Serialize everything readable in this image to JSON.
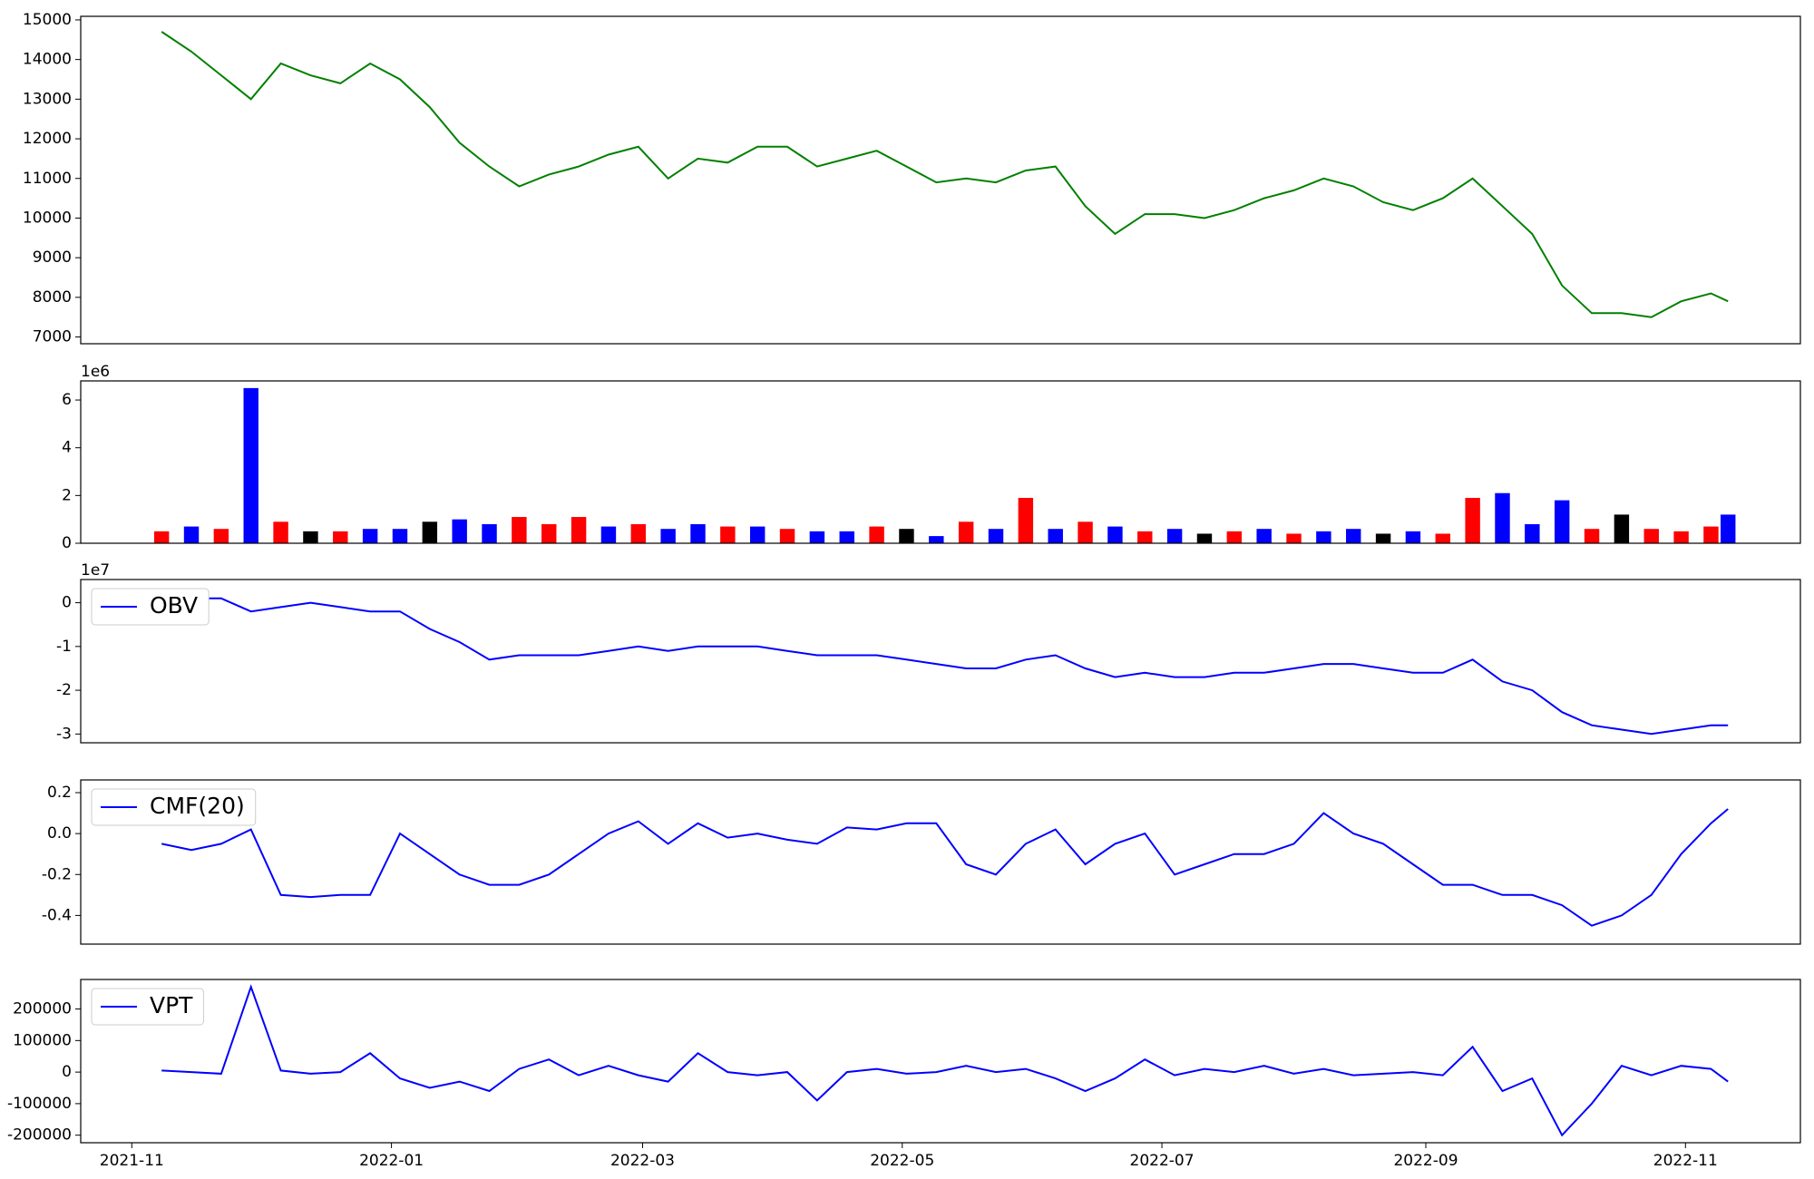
{
  "chart_data": [
    {
      "type": "line",
      "x": [
        "2021-11-08",
        "2021-11-15",
        "2021-11-22",
        "2021-11-29",
        "2021-12-06",
        "2021-12-13",
        "2021-12-20",
        "2021-12-27",
        "2022-01-03",
        "2022-01-10",
        "2022-01-17",
        "2022-01-24",
        "2022-01-31",
        "2022-02-07",
        "2022-02-14",
        "2022-02-21",
        "2022-02-28",
        "2022-03-07",
        "2022-03-14",
        "2022-03-21",
        "2022-03-28",
        "2022-04-04",
        "2022-04-11",
        "2022-04-18",
        "2022-04-25",
        "2022-05-02",
        "2022-05-09",
        "2022-05-16",
        "2022-05-23",
        "2022-05-30",
        "2022-06-06",
        "2022-06-13",
        "2022-06-20",
        "2022-06-27",
        "2022-07-04",
        "2022-07-11",
        "2022-07-18",
        "2022-07-25",
        "2022-08-01",
        "2022-08-08",
        "2022-08-15",
        "2022-08-22",
        "2022-08-29",
        "2022-09-05",
        "2022-09-12",
        "2022-09-19",
        "2022-09-26",
        "2022-10-03",
        "2022-10-10",
        "2022-10-17",
        "2022-10-24",
        "2022-10-31",
        "2022-11-07",
        "2022-11-11"
      ],
      "series": [
        {
          "color": "green",
          "values": [
            14700,
            14200,
            13600,
            13000,
            13900,
            13600,
            13400,
            13900,
            13500,
            12800,
            11900,
            11300,
            10800,
            11100,
            11300,
            11600,
            11800,
            11000,
            11500,
            11400,
            11800,
            11800,
            11300,
            11500,
            11700,
            11300,
            10900,
            11000,
            10900,
            11200,
            11300,
            10300,
            9600,
            10100,
            10100,
            10000,
            10200,
            10500,
            10700,
            11000,
            10800,
            10400,
            10200,
            10500,
            11000,
            10300,
            9600,
            8300,
            7600,
            7600,
            7500,
            7900,
            8100,
            7900
          ]
        }
      ],
      "xlim": [
        "2021-10-20",
        "2022-11-28"
      ],
      "ylim": [
        6830,
        15090
      ],
      "yticks": [
        7000,
        8000,
        9000,
        10000,
        11000,
        12000,
        13000,
        14000,
        15000
      ]
    },
    {
      "type": "bar",
      "x": [
        "2021-11-08",
        "2021-11-15",
        "2021-11-22",
        "2021-11-29",
        "2021-12-06",
        "2021-12-13",
        "2021-12-20",
        "2021-12-27",
        "2022-01-03",
        "2022-01-10",
        "2022-01-17",
        "2022-01-24",
        "2022-01-31",
        "2022-02-07",
        "2022-02-14",
        "2022-02-21",
        "2022-02-28",
        "2022-03-07",
        "2022-03-14",
        "2022-03-21",
        "2022-03-28",
        "2022-04-04",
        "2022-04-11",
        "2022-04-18",
        "2022-04-25",
        "2022-05-02",
        "2022-05-09",
        "2022-05-16",
        "2022-05-23",
        "2022-05-30",
        "2022-06-06",
        "2022-06-13",
        "2022-06-20",
        "2022-06-27",
        "2022-07-04",
        "2022-07-11",
        "2022-07-18",
        "2022-07-25",
        "2022-08-01",
        "2022-08-08",
        "2022-08-15",
        "2022-08-22",
        "2022-08-29",
        "2022-09-05",
        "2022-09-12",
        "2022-09-19",
        "2022-09-26",
        "2022-10-03",
        "2022-10-10",
        "2022-10-17",
        "2022-10-24",
        "2022-10-31",
        "2022-11-07",
        "2022-11-11"
      ],
      "values": [
        0.5,
        0.7,
        0.6,
        6.5,
        0.9,
        0.5,
        0.5,
        0.6,
        0.6,
        0.9,
        1.0,
        0.8,
        1.1,
        0.8,
        1.1,
        0.7,
        0.8,
        0.6,
        0.8,
        0.7,
        0.7,
        0.6,
        0.5,
        0.5,
        0.7,
        0.6,
        0.3,
        0.9,
        0.6,
        1.9,
        0.6,
        0.9,
        0.7,
        0.5,
        0.6,
        0.4,
        0.5,
        0.6,
        0.4,
        0.5,
        0.6,
        0.4,
        0.5,
        0.4,
        1.9,
        2.1,
        0.8,
        1.8,
        0.6,
        1.2,
        0.6,
        0.5,
        0.7,
        1.2
      ],
      "colors": [
        "red",
        "blue",
        "red",
        "blue",
        "red",
        "black",
        "red",
        "blue",
        "blue",
        "black",
        "blue",
        "blue",
        "red",
        "red",
        "red",
        "blue",
        "red",
        "blue",
        "blue",
        "red",
        "blue",
        "red",
        "blue",
        "blue",
        "red",
        "black",
        "blue",
        "red",
        "blue",
        "red",
        "blue",
        "red",
        "blue",
        "red",
        "blue",
        "black",
        "red",
        "blue",
        "red",
        "blue",
        "blue",
        "black",
        "blue",
        "red",
        "red",
        "blue",
        "blue",
        "blue",
        "red",
        "black",
        "red",
        "red",
        "red",
        "blue"
      ],
      "offset_label": "1e6",
      "xlim": [
        "2021-10-20",
        "2022-11-28"
      ],
      "ylim": [
        0,
        6.8
      ],
      "yticks": [
        0,
        2,
        4,
        6
      ]
    },
    {
      "type": "line",
      "x": [
        "2021-11-08",
        "2021-11-15",
        "2021-11-22",
        "2021-11-29",
        "2021-12-06",
        "2021-12-13",
        "2021-12-20",
        "2021-12-27",
        "2022-01-03",
        "2022-01-10",
        "2022-01-17",
        "2022-01-24",
        "2022-01-31",
        "2022-02-07",
        "2022-02-14",
        "2022-02-21",
        "2022-02-28",
        "2022-03-07",
        "2022-03-14",
        "2022-03-21",
        "2022-03-28",
        "2022-04-04",
        "2022-04-11",
        "2022-04-18",
        "2022-04-25",
        "2022-05-02",
        "2022-05-09",
        "2022-05-16",
        "2022-05-23",
        "2022-05-30",
        "2022-06-06",
        "2022-06-13",
        "2022-06-20",
        "2022-06-27",
        "2022-07-04",
        "2022-07-11",
        "2022-07-18",
        "2022-07-25",
        "2022-08-01",
        "2022-08-08",
        "2022-08-15",
        "2022-08-22",
        "2022-08-29",
        "2022-09-05",
        "2022-09-12",
        "2022-09-19",
        "2022-09-26",
        "2022-10-03",
        "2022-10-10",
        "2022-10-17",
        "2022-10-24",
        "2022-10-31",
        "2022-11-07",
        "2022-11-11"
      ],
      "series": [
        {
          "name": "OBV",
          "color": "blue",
          "values": [
            0.3,
            0.1,
            0.1,
            -0.2,
            -0.1,
            0.0,
            -0.1,
            -0.2,
            -0.2,
            -0.6,
            -0.9,
            -1.3,
            -1.2,
            -1.2,
            -1.2,
            -1.1,
            -1.0,
            -1.1,
            -1.0,
            -1.0,
            -1.0,
            -1.1,
            -1.2,
            -1.2,
            -1.2,
            -1.3,
            -1.4,
            -1.5,
            -1.5,
            -1.3,
            -1.2,
            -1.5,
            -1.7,
            -1.6,
            -1.7,
            -1.7,
            -1.6,
            -1.6,
            -1.5,
            -1.4,
            -1.4,
            -1.5,
            -1.6,
            -1.6,
            -1.3,
            -1.8,
            -2.0,
            -2.5,
            -2.8,
            -2.9,
            -3.0,
            -2.9,
            -2.8,
            -2.8
          ]
        }
      ],
      "legend": "upper left",
      "offset_label": "1e7",
      "xlim": [
        "2021-10-20",
        "2022-11-28"
      ],
      "ylim": [
        -3.2,
        0.53
      ],
      "yticks": [
        -3,
        -2,
        -1,
        0
      ]
    },
    {
      "type": "line",
      "x": [
        "2021-11-08",
        "2021-11-15",
        "2021-11-22",
        "2021-11-29",
        "2021-12-06",
        "2021-12-13",
        "2021-12-20",
        "2021-12-27",
        "2022-01-03",
        "2022-01-10",
        "2022-01-17",
        "2022-01-24",
        "2022-01-31",
        "2022-02-07",
        "2022-02-14",
        "2022-02-21",
        "2022-02-28",
        "2022-03-07",
        "2022-03-14",
        "2022-03-21",
        "2022-03-28",
        "2022-04-04",
        "2022-04-11",
        "2022-04-18",
        "2022-04-25",
        "2022-05-02",
        "2022-05-09",
        "2022-05-16",
        "2022-05-23",
        "2022-05-30",
        "2022-06-06",
        "2022-06-13",
        "2022-06-20",
        "2022-06-27",
        "2022-07-04",
        "2022-07-11",
        "2022-07-18",
        "2022-07-25",
        "2022-08-01",
        "2022-08-08",
        "2022-08-15",
        "2022-08-22",
        "2022-08-29",
        "2022-09-05",
        "2022-09-12",
        "2022-09-19",
        "2022-09-26",
        "2022-10-03",
        "2022-10-10",
        "2022-10-17",
        "2022-10-24",
        "2022-10-31",
        "2022-11-07",
        "2022-11-11"
      ],
      "series": [
        {
          "name": "CMF(20)",
          "color": "blue",
          "values": [
            -0.05,
            -0.08,
            -0.05,
            0.02,
            -0.3,
            -0.31,
            -0.3,
            -0.3,
            0.0,
            -0.1,
            -0.2,
            -0.25,
            -0.25,
            -0.2,
            -0.1,
            0.0,
            0.06,
            -0.05,
            0.05,
            -0.02,
            0.0,
            -0.03,
            -0.05,
            0.03,
            0.02,
            0.05,
            0.05,
            -0.15,
            -0.2,
            -0.05,
            0.02,
            -0.15,
            -0.05,
            0.0,
            -0.2,
            -0.15,
            -0.1,
            -0.1,
            -0.05,
            0.1,
            0.0,
            -0.05,
            -0.15,
            -0.25,
            -0.25,
            -0.3,
            -0.3,
            -0.35,
            -0.45,
            -0.4,
            -0.3,
            -0.1,
            0.05,
            0.12
          ]
        }
      ],
      "legend": "upper left",
      "xlim": [
        "2021-10-20",
        "2022-11-28"
      ],
      "ylim": [
        -0.54,
        0.262
      ],
      "yticks": [
        -0.4,
        -0.2,
        {
          "value": 0,
          "label": "0.0"
        },
        0.2
      ]
    },
    {
      "type": "line",
      "x": [
        "2021-11-08",
        "2021-11-15",
        "2021-11-22",
        "2021-11-29",
        "2021-12-06",
        "2021-12-13",
        "2021-12-20",
        "2021-12-27",
        "2022-01-03",
        "2022-01-10",
        "2022-01-17",
        "2022-01-24",
        "2022-01-31",
        "2022-02-07",
        "2022-02-14",
        "2022-02-21",
        "2022-02-28",
        "2022-03-07",
        "2022-03-14",
        "2022-03-21",
        "2022-03-28",
        "2022-04-04",
        "2022-04-11",
        "2022-04-18",
        "2022-04-25",
        "2022-05-02",
        "2022-05-09",
        "2022-05-16",
        "2022-05-23",
        "2022-05-30",
        "2022-06-06",
        "2022-06-13",
        "2022-06-20",
        "2022-06-27",
        "2022-07-04",
        "2022-07-11",
        "2022-07-18",
        "2022-07-25",
        "2022-08-01",
        "2022-08-08",
        "2022-08-15",
        "2022-08-22",
        "2022-08-29",
        "2022-09-05",
        "2022-09-12",
        "2022-09-19",
        "2022-09-26",
        "2022-10-03",
        "2022-10-10",
        "2022-10-17",
        "2022-10-24",
        "2022-10-31",
        "2022-11-07",
        "2022-11-11"
      ],
      "series": [
        {
          "name": "VPT",
          "color": "blue",
          "values": [
            5000,
            0,
            -5000,
            270000,
            5000,
            -5000,
            0,
            60000,
            -20000,
            -50000,
            -30000,
            -60000,
            10000,
            40000,
            -10000,
            20000,
            -10000,
            -30000,
            60000,
            0,
            -10000,
            0,
            -90000,
            0,
            10000,
            -5000,
            0,
            20000,
            0,
            10000,
            -20000,
            -60000,
            -20000,
            40000,
            -10000,
            10000,
            0,
            20000,
            -5000,
            10000,
            -10000,
            -5000,
            0,
            -10000,
            80000,
            -60000,
            -20000,
            -200000,
            -100000,
            20000,
            -10000,
            20000,
            10000,
            -30000
          ]
        }
      ],
      "legend": "upper left",
      "xlim": [
        "2021-10-20",
        "2022-11-28"
      ],
      "ylim": [
        -223900,
        293600
      ],
      "yticks": [
        -200000,
        -100000,
        0,
        100000,
        200000
      ],
      "xticks": [
        {
          "value": "2021-11-01",
          "label": "2021-11"
        },
        {
          "value": "2022-01-01",
          "label": "2022-01"
        },
        {
          "value": "2022-03-01",
          "label": "2022-03"
        },
        {
          "value": "2022-05-01",
          "label": "2022-05"
        },
        {
          "value": "2022-07-01",
          "label": "2022-07"
        },
        {
          "value": "2022-09-01",
          "label": "2022-09"
        },
        {
          "value": "2022-11-01",
          "label": "2022-11"
        }
      ]
    }
  ]
}
